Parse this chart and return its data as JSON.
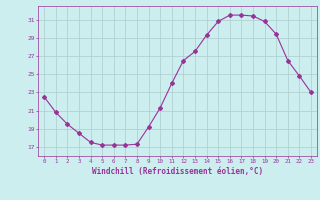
{
  "x": [
    0,
    1,
    2,
    3,
    4,
    5,
    6,
    7,
    8,
    9,
    10,
    11,
    12,
    13,
    14,
    15,
    16,
    17,
    18,
    19,
    20,
    21,
    22,
    23
  ],
  "y": [
    22.5,
    20.8,
    19.5,
    18.5,
    17.5,
    17.2,
    17.2,
    17.2,
    17.3,
    19.2,
    21.3,
    24.0,
    26.5,
    27.5,
    29.3,
    30.8,
    31.5,
    31.5,
    31.4,
    30.8,
    29.4,
    26.5,
    24.8,
    23.0
  ],
  "xlabel": "Windchill (Refroidissement éolien,°C)",
  "xlim": [
    -0.5,
    23.5
  ],
  "ylim": [
    16.0,
    32.5
  ],
  "yticks": [
    17,
    19,
    21,
    23,
    25,
    27,
    29,
    31
  ],
  "xticks": [
    0,
    1,
    2,
    3,
    4,
    5,
    6,
    7,
    8,
    9,
    10,
    11,
    12,
    13,
    14,
    15,
    16,
    17,
    18,
    19,
    20,
    21,
    22,
    23
  ],
  "line_color": "#993399",
  "marker": "D",
  "marker_size": 2,
  "bg_color": "#cceeee",
  "grid_color": "#aacccc",
  "label_color": "#993399",
  "tick_color": "#993399"
}
